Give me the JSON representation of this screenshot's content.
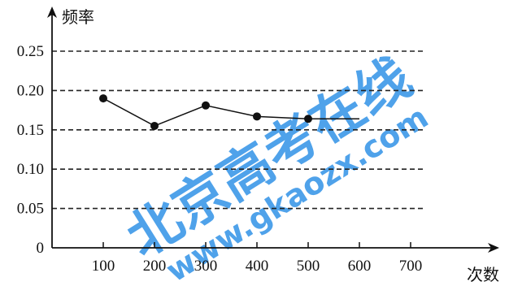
{
  "chart_data": {
    "type": "line",
    "title": "",
    "xlabel": "次数",
    "ylabel": "频率",
    "x_ticks": [
      "100",
      "200",
      "300",
      "400",
      "500",
      "600",
      "700"
    ],
    "y_ticks": [
      "0",
      "0.05",
      "0.10",
      "0.15",
      "0.20",
      "0.25"
    ],
    "xlim": [
      0,
      700
    ],
    "ylim": [
      0,
      0.25
    ],
    "grid": "horizontal dashed",
    "series": [
      {
        "x": [
          100,
          200,
          300,
          400,
          500
        ],
        "y": [
          0.19,
          0.155,
          0.181,
          0.167,
          0.164
        ],
        "trailing_line_to_x": 600
      }
    ]
  },
  "watermark": {
    "cn": "北京高考在线",
    "url": "www.gkaozx.com"
  },
  "colors": {
    "watermark": "#1e88e5",
    "axis": "#111111"
  }
}
